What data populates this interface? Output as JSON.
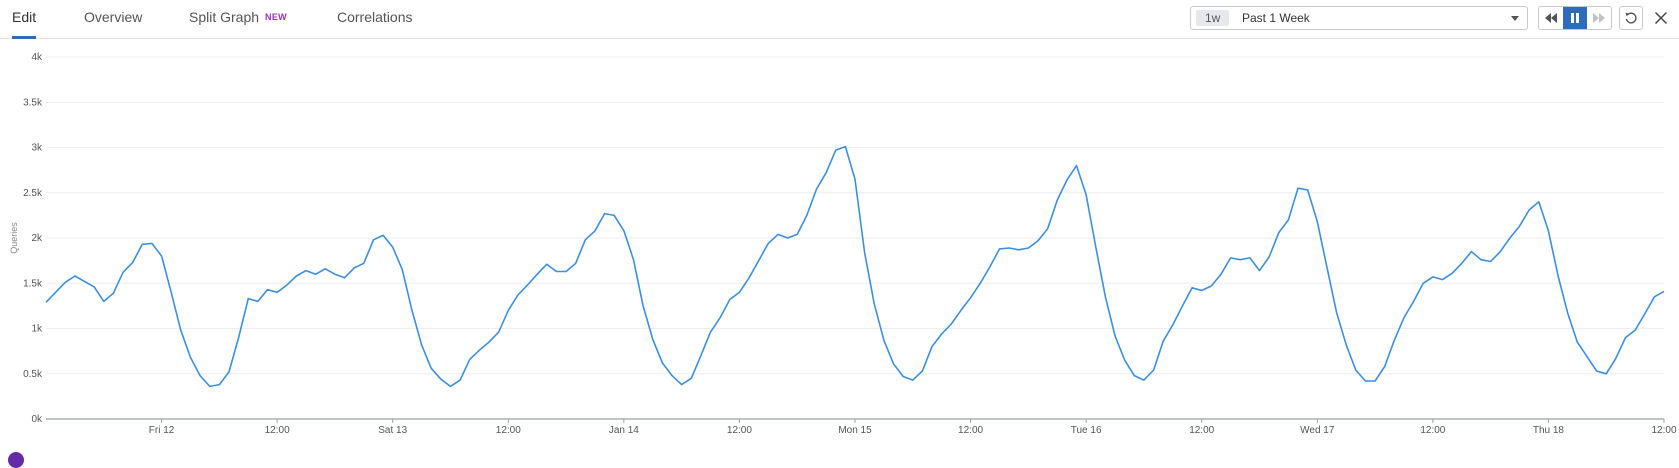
{
  "tabs": [
    {
      "label": "Edit",
      "active": true
    },
    {
      "label": "Overview",
      "active": false
    },
    {
      "label": "Split Graph",
      "badge": "NEW",
      "active": false
    },
    {
      "label": "Correlations",
      "active": false
    }
  ],
  "time_selector": {
    "short": "1w",
    "label": "Past 1 Week"
  },
  "controls": {
    "rewind_icon": "rewind-icon",
    "pause_icon": "pause-icon",
    "forward_icon": "fast-forward-icon",
    "reset_icon": "reset-icon",
    "close_icon": "close-icon"
  },
  "colors": {
    "line": "#3d8fe0",
    "accent": "#2f6bbd",
    "badge": "#9b30c8"
  },
  "chart_data": {
    "type": "line",
    "ylabel": "Queries",
    "ylim": [
      0,
      4000
    ],
    "y_ticks": [
      {
        "value": 0,
        "label": "0k"
      },
      {
        "value": 500,
        "label": "0.5k"
      },
      {
        "value": 1000,
        "label": "1k"
      },
      {
        "value": 1500,
        "label": "1.5k"
      },
      {
        "value": 2000,
        "label": "2k"
      },
      {
        "value": 2500,
        "label": "2.5k"
      },
      {
        "value": 3000,
        "label": "3k"
      },
      {
        "value": 3500,
        "label": "3.5k"
      },
      {
        "value": 4000,
        "label": "4k"
      }
    ],
    "x_unit": "hours",
    "xlim": [
      0,
      168
    ],
    "x_ticks": [
      {
        "value": 12,
        "label": "Fri 12"
      },
      {
        "value": 24,
        "label": "12:00"
      },
      {
        "value": 36,
        "label": "Sat 13"
      },
      {
        "value": 48,
        "label": "12:00"
      },
      {
        "value": 60,
        "label": "Jan 14"
      },
      {
        "value": 72,
        "label": "12:00"
      },
      {
        "value": 84,
        "label": "Mon 15"
      },
      {
        "value": 96,
        "label": "12:00"
      },
      {
        "value": 108,
        "label": "Tue 16"
      },
      {
        "value": 120,
        "label": "12:00"
      },
      {
        "value": 132,
        "label": "Wed 17"
      },
      {
        "value": 144,
        "label": "12:00"
      },
      {
        "value": 156,
        "label": "Thu 18"
      },
      {
        "value": 168,
        "label": "12:00"
      }
    ],
    "grid": true,
    "series": [
      {
        "points": [
          [
            0,
            1290
          ],
          [
            1,
            1400
          ],
          [
            2,
            1510
          ],
          [
            3,
            1580
          ],
          [
            4,
            1520
          ],
          [
            5,
            1460
          ],
          [
            6,
            1300
          ],
          [
            7,
            1390
          ],
          [
            8,
            1620
          ],
          [
            9,
            1730
          ],
          [
            10,
            1930
          ],
          [
            11,
            1940
          ],
          [
            12,
            1800
          ],
          [
            13,
            1400
          ],
          [
            14,
            980
          ],
          [
            15,
            680
          ],
          [
            16,
            480
          ],
          [
            17,
            360
          ],
          [
            18,
            380
          ],
          [
            19,
            520
          ],
          [
            20,
            900
          ],
          [
            21,
            1330
          ],
          [
            22,
            1300
          ],
          [
            23,
            1430
          ],
          [
            24,
            1400
          ],
          [
            25,
            1480
          ],
          [
            26,
            1580
          ],
          [
            27,
            1640
          ],
          [
            28,
            1600
          ],
          [
            29,
            1660
          ],
          [
            30,
            1600
          ],
          [
            31,
            1560
          ],
          [
            32,
            1670
          ],
          [
            33,
            1720
          ],
          [
            34,
            1980
          ],
          [
            35,
            2030
          ],
          [
            36,
            1900
          ],
          [
            37,
            1650
          ],
          [
            38,
            1200
          ],
          [
            39,
            820
          ],
          [
            40,
            560
          ],
          [
            41,
            440
          ],
          [
            42,
            360
          ],
          [
            43,
            430
          ],
          [
            44,
            660
          ],
          [
            45,
            760
          ],
          [
            46,
            850
          ],
          [
            47,
            960
          ],
          [
            48,
            1200
          ],
          [
            49,
            1370
          ],
          [
            50,
            1480
          ],
          [
            51,
            1600
          ],
          [
            52,
            1710
          ],
          [
            53,
            1630
          ],
          [
            54,
            1630
          ],
          [
            55,
            1720
          ],
          [
            56,
            1980
          ],
          [
            57,
            2080
          ],
          [
            58,
            2270
          ],
          [
            59,
            2250
          ],
          [
            60,
            2080
          ],
          [
            61,
            1760
          ],
          [
            62,
            1250
          ],
          [
            63,
            880
          ],
          [
            64,
            620
          ],
          [
            65,
            480
          ],
          [
            66,
            380
          ],
          [
            67,
            450
          ],
          [
            68,
            700
          ],
          [
            69,
            960
          ],
          [
            70,
            1120
          ],
          [
            71,
            1320
          ],
          [
            72,
            1400
          ],
          [
            73,
            1560
          ],
          [
            74,
            1750
          ],
          [
            75,
            1940
          ],
          [
            76,
            2040
          ],
          [
            77,
            2000
          ],
          [
            78,
            2040
          ],
          [
            79,
            2250
          ],
          [
            80,
            2540
          ],
          [
            81,
            2720
          ],
          [
            82,
            2970
          ],
          [
            83,
            3010
          ],
          [
            84,
            2650
          ],
          [
            85,
            1840
          ],
          [
            86,
            1270
          ],
          [
            87,
            870
          ],
          [
            88,
            610
          ],
          [
            89,
            470
          ],
          [
            90,
            430
          ],
          [
            91,
            530
          ],
          [
            92,
            800
          ],
          [
            93,
            940
          ],
          [
            94,
            1050
          ],
          [
            95,
            1200
          ],
          [
            96,
            1340
          ],
          [
            97,
            1500
          ],
          [
            98,
            1680
          ],
          [
            99,
            1880
          ],
          [
            100,
            1890
          ],
          [
            101,
            1870
          ],
          [
            102,
            1890
          ],
          [
            103,
            1970
          ],
          [
            104,
            2100
          ],
          [
            105,
            2420
          ],
          [
            106,
            2640
          ],
          [
            107,
            2800
          ],
          [
            108,
            2480
          ],
          [
            109,
            1900
          ],
          [
            110,
            1350
          ],
          [
            111,
            920
          ],
          [
            112,
            650
          ],
          [
            113,
            480
          ],
          [
            114,
            430
          ],
          [
            115,
            540
          ],
          [
            116,
            860
          ],
          [
            117,
            1040
          ],
          [
            118,
            1250
          ],
          [
            119,
            1450
          ],
          [
            120,
            1420
          ],
          [
            121,
            1470
          ],
          [
            122,
            1600
          ],
          [
            123,
            1780
          ],
          [
            124,
            1760
          ],
          [
            125,
            1780
          ],
          [
            126,
            1640
          ],
          [
            127,
            1790
          ],
          [
            128,
            2060
          ],
          [
            129,
            2200
          ],
          [
            130,
            2550
          ],
          [
            131,
            2530
          ],
          [
            132,
            2180
          ],
          [
            133,
            1680
          ],
          [
            134,
            1180
          ],
          [
            135,
            820
          ],
          [
            136,
            540
          ],
          [
            137,
            420
          ],
          [
            138,
            420
          ],
          [
            139,
            580
          ],
          [
            140,
            870
          ],
          [
            141,
            1120
          ],
          [
            142,
            1300
          ],
          [
            143,
            1500
          ],
          [
            144,
            1570
          ],
          [
            145,
            1540
          ],
          [
            146,
            1610
          ],
          [
            147,
            1720
          ],
          [
            148,
            1850
          ],
          [
            149,
            1760
          ],
          [
            150,
            1740
          ],
          [
            151,
            1850
          ],
          [
            152,
            2000
          ],
          [
            153,
            2130
          ],
          [
            154,
            2310
          ],
          [
            155,
            2400
          ],
          [
            156,
            2080
          ],
          [
            157,
            1580
          ],
          [
            158,
            1170
          ],
          [
            159,
            850
          ],
          [
            160,
            690
          ],
          [
            161,
            530
          ],
          [
            162,
            500
          ],
          [
            163,
            670
          ],
          [
            164,
            900
          ],
          [
            165,
            980
          ],
          [
            166,
            1160
          ],
          [
            167,
            1350
          ],
          [
            168,
            1410
          ]
        ]
      }
    ]
  }
}
